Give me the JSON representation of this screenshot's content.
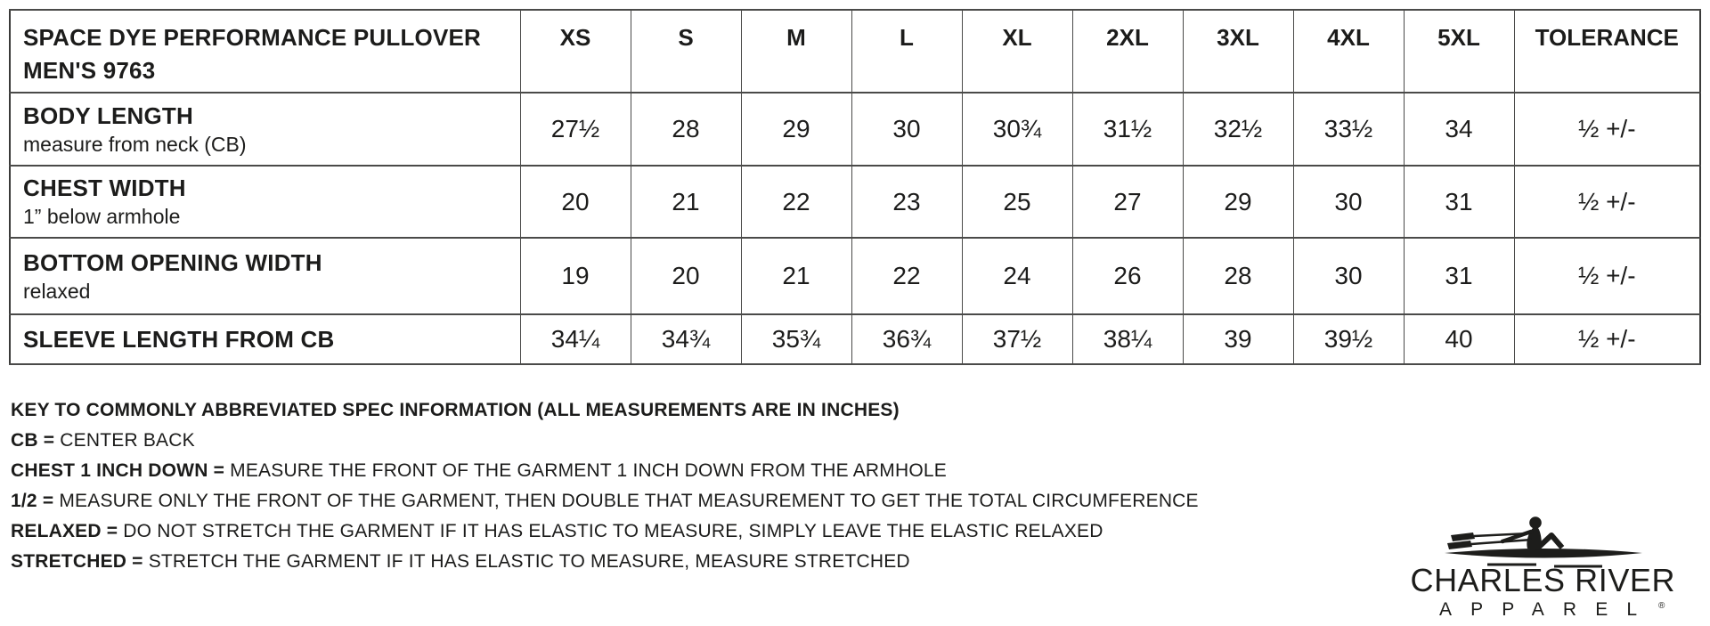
{
  "table": {
    "title_line1": "SPACE DYE PERFORMANCE PULLOVER",
    "title_line2": "MEN'S 9763",
    "size_headers": [
      "XS",
      "S",
      "M",
      "L",
      "XL",
      "2XL",
      "3XL",
      "4XL",
      "5XL",
      "TOLERANCE"
    ],
    "rows": [
      {
        "label": "BODY LENGTH",
        "sublabel": "measure from neck (CB)",
        "values": [
          "27½",
          "28",
          "29",
          "30",
          "30¾",
          "31½",
          "32½",
          "33½",
          "34",
          "½ +/-"
        ]
      },
      {
        "label": "CHEST WIDTH",
        "sublabel": "1” below armhole",
        "values": [
          "20",
          "21",
          "22",
          "23",
          "25",
          "27",
          "29",
          "30",
          "31",
          "½ +/-"
        ]
      },
      {
        "label": "BOTTOM OPENING WIDTH",
        "sublabel": "relaxed",
        "values": [
          "19",
          "20",
          "21",
          "22",
          "24",
          "26",
          "28",
          "30",
          "31",
          "½ +/-"
        ]
      },
      {
        "label": "SLEEVE LENGTH FROM CB",
        "sublabel": "",
        "values": [
          "34¼",
          "34¾",
          "35¾",
          "36¾",
          "37½",
          "38¼",
          "39",
          "39½",
          "40",
          "½ +/-"
        ]
      }
    ]
  },
  "key": {
    "heading": "KEY TO COMMONLY ABBREVIATED SPEC INFORMATION (ALL MEASUREMENTS ARE IN INCHES)",
    "entries": [
      {
        "term": "CB =",
        "definition": "CENTER BACK"
      },
      {
        "term": "CHEST 1 INCH DOWN =",
        "definition": "MEASURE THE FRONT OF THE GARMENT 1 INCH DOWN FROM THE ARMHOLE"
      },
      {
        "term": "1/2 =",
        "definition": "MEASURE ONLY THE FRONT OF THE GARMENT, THEN DOUBLE THAT MEASUREMENT TO GET THE TOTAL CIRCUMFERENCE"
      },
      {
        "term": "RELAXED =",
        "definition": "DO NOT STRETCH THE GARMENT IF IT HAS ELASTIC TO MEASURE, SIMPLY LEAVE THE ELASTIC RELAXED"
      },
      {
        "term": "STRETCHED =",
        "definition": "STRETCH THE GARMENT IF IT HAS ELASTIC TO MEASURE, MEASURE STRETCHED"
      }
    ]
  },
  "logo": {
    "brand_line1": "CHARLES RIVER",
    "brand_line2": "APPAREL",
    "registered": "®"
  },
  "colors": {
    "text": "#1c1c1b",
    "border": "#4a4a49",
    "background": "#ffffff"
  }
}
